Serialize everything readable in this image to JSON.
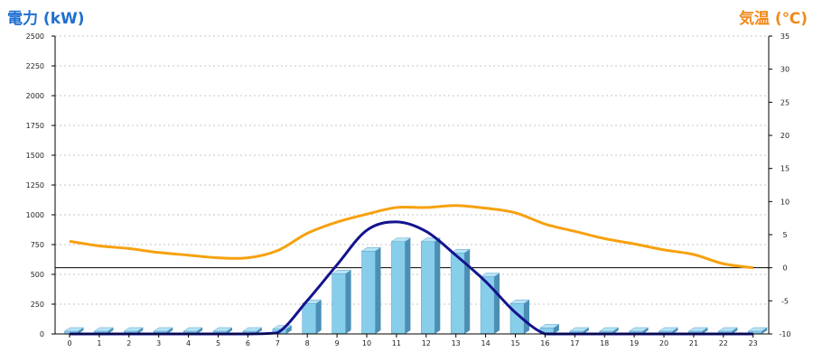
{
  "chart_data": {
    "type": "bar",
    "left_axis_title": "電力 (kW)",
    "right_axis_title": "気温 (℃)",
    "categories": [
      "0",
      "1",
      "2",
      "3",
      "4",
      "5",
      "6",
      "7",
      "8",
      "9",
      "10",
      "11",
      "12",
      "13",
      "14",
      "15",
      "16",
      "17",
      "18",
      "19",
      "20",
      "21",
      "22",
      "23"
    ],
    "ylim_left": [
      0,
      2500
    ],
    "yticks_left": [
      0,
      250,
      500,
      750,
      1000,
      1250,
      1500,
      1750,
      2000,
      2250,
      2500
    ],
    "ylim_right": [
      -10,
      35
    ],
    "yticks_right": [
      -10,
      -5,
      0,
      5,
      10,
      15,
      20,
      25,
      30,
      35
    ],
    "grid": true,
    "series": [
      {
        "kind": "bar",
        "axis": "left",
        "values": [
          0,
          0,
          0,
          0,
          0,
          0,
          0,
          40,
          255,
          505,
          695,
          775,
          775,
          680,
          480,
          255,
          50,
          0,
          0,
          0,
          0,
          0,
          0,
          0
        ]
      },
      {
        "kind": "smooth-line",
        "axis": "left",
        "values": [
          0,
          0,
          0,
          0,
          0,
          0,
          0,
          10,
          280,
          580,
          870,
          940,
          860,
          660,
          440,
          180,
          0,
          0,
          0,
          0,
          0,
          0,
          0,
          0
        ]
      },
      {
        "kind": "line",
        "axis": "right",
        "values": [
          4.0,
          3.3,
          2.9,
          2.3,
          1.9,
          1.5,
          1.5,
          2.6,
          5.2,
          6.9,
          8.1,
          9.1,
          9.1,
          9.4,
          9.0,
          8.3,
          6.6,
          5.5,
          4.4,
          3.6,
          2.7,
          2.0,
          0.6,
          0.0
        ]
      }
    ],
    "colors": {
      "bar_front": "#87ceeb",
      "bar_side": "#4c8fb5",
      "bar_top": "#b7e3f5",
      "bar_outline": "#5aa0c8",
      "smooth_line": "#13138f",
      "temperature_line": "#f6a10f",
      "grid": "#c4c4c4",
      "axis": "#000000",
      "left_title": "#1f6fd0",
      "right_title": "#f08a1c"
    }
  }
}
